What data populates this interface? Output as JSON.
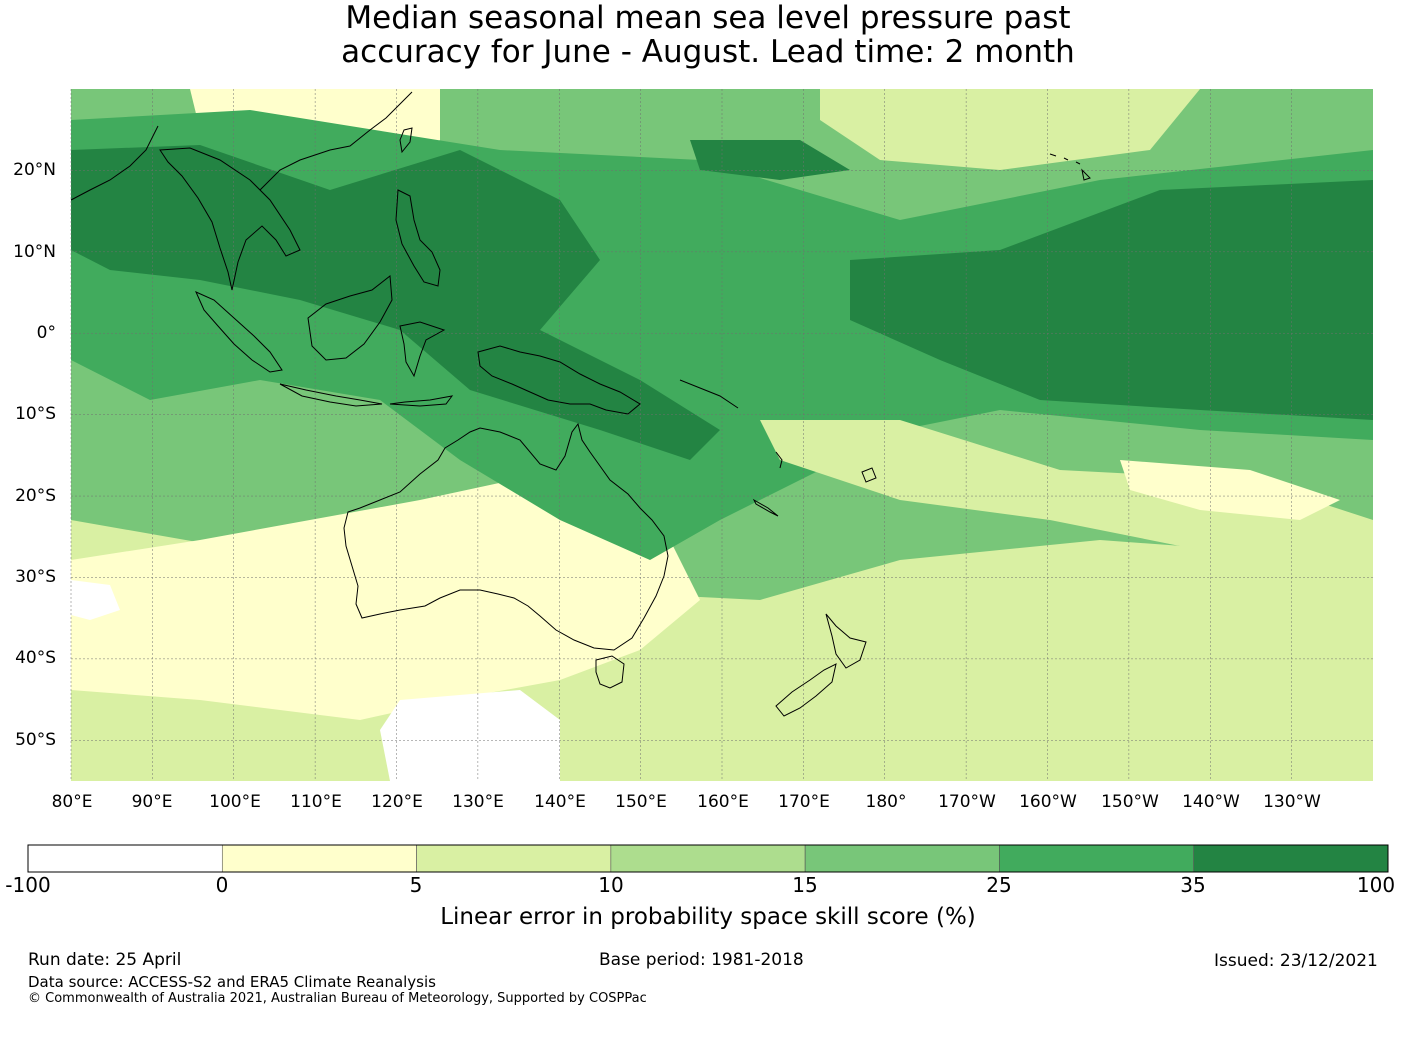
{
  "title": {
    "line1": "Median seasonal mean sea level pressure past",
    "line2": "accuracy for June - August. Lead time: 2 month"
  },
  "map": {
    "lat_labels": [
      "20°N",
      "10°N",
      "0°",
      "10°S",
      "20°S",
      "30°S",
      "40°S",
      "50°S"
    ],
    "lon_labels": [
      "80°E",
      "90°E",
      "100°E",
      "110°E",
      "120°E",
      "130°E",
      "140°E",
      "150°E",
      "160°E",
      "170°E",
      "180°",
      "170°W",
      "160°W",
      "150°W",
      "140°W",
      "130°W"
    ],
    "extent": {
      "lon_min": 80,
      "lon_max": 240,
      "lat_min": -55,
      "lat_max": 30
    }
  },
  "colorbar": {
    "ticks": [
      "-100",
      "0",
      "5",
      "10",
      "15",
      "25",
      "35",
      "100"
    ],
    "colors": [
      "#ffffff",
      "#ffffcc",
      "#d9f0a3",
      "#addd8e",
      "#78c679",
      "#41ab5d",
      "#238443"
    ],
    "label": "Linear error in probability space skill score (%)"
  },
  "footer": {
    "run_date": "Run date: 25 April",
    "base_period": "Base period: 1981-2018",
    "issued": "Issued: 23/12/2021",
    "data_source": "Data source: ACCESS-S2 and ERA5 Climate Reanalysis",
    "copyright": "© Commonwealth of Australia 2021, Australian Bureau of Meteorology, Supported by COSPPac"
  }
}
